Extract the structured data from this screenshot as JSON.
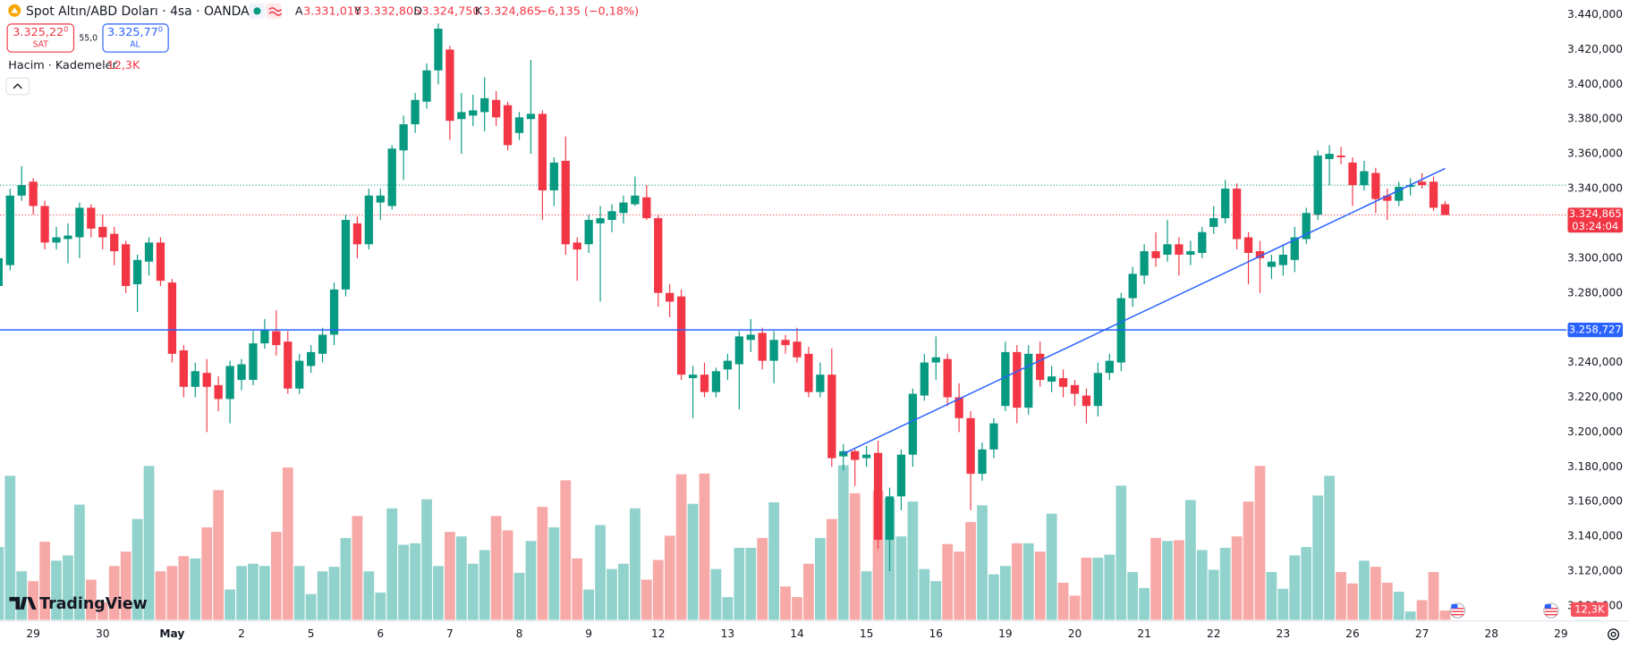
{
  "chart_data": {
    "type": "candlestick",
    "title": "Spot Altın/ABD Doları · 4sa · OANDA",
    "legend": {
      "open_letter": "A",
      "open": "3.331,010",
      "high_letter": "Y",
      "high": "3.332,805",
      "low_letter": "D",
      "low": "3.324,750",
      "close_letter": "K",
      "close": "3.324,865",
      "change": "−6,135 (−0,18%)"
    },
    "sell": {
      "price": "3.325,22",
      "price_small": "0",
      "label": "SAT"
    },
    "spread": "55,0",
    "buy": {
      "price": "3.325,77",
      "price_small": "0",
      "label": "AL"
    },
    "volume_title": "Hacim · Kademeler",
    "volume_last_label": "12,3K",
    "brand": "TradingView",
    "up_color": "#089981",
    "down_color": "#f23645",
    "volume_up_color": "#92d2cc",
    "volume_down_color": "#f7a9a7",
    "ylim": [
      3092,
      3448.4
    ],
    "yticks": [
      {
        "value": 3440,
        "label": "3.440,000"
      },
      {
        "value": 3420,
        "label": "3.420,000"
      },
      {
        "value": 3400,
        "label": "3.400,000"
      },
      {
        "value": 3380,
        "label": "3.380,000"
      },
      {
        "value": 3360,
        "label": "3.360,000"
      },
      {
        "value": 3340,
        "label": "3.340,000"
      },
      {
        "value": 3320,
        "label": "3.320,000"
      },
      {
        "value": 3300,
        "label": "3.300,000"
      },
      {
        "value": 3280,
        "label": "3.280,000"
      },
      {
        "value": 3260,
        "label": "3.260,000"
      },
      {
        "value": 3240,
        "label": "3.240,000"
      },
      {
        "value": 3220,
        "label": "3.220,000"
      },
      {
        "value": 3200,
        "label": "3.200,000"
      },
      {
        "value": 3180,
        "label": "3.180,000"
      },
      {
        "value": 3160,
        "label": "3.160,000"
      },
      {
        "value": 3140,
        "label": "3.140,000"
      },
      {
        "value": 3120,
        "label": "3.120,000"
      },
      {
        "value": 3100,
        "label": "3.100,000"
      }
    ],
    "grid": false,
    "categories": [
      null,
      null,
      null,
      "29",
      null,
      null,
      null,
      null,
      null,
      "30",
      null,
      null,
      null,
      null,
      null,
      "May",
      null,
      null,
      null,
      null,
      null,
      "2",
      null,
      null,
      null,
      null,
      null,
      "5",
      null,
      null,
      null,
      null,
      null,
      "6",
      null,
      null,
      null,
      null,
      null,
      "7",
      null,
      null,
      null,
      null,
      null,
      "8",
      null,
      null,
      null,
      null,
      null,
      "9",
      null,
      null,
      null,
      null,
      null,
      "12",
      null,
      null,
      null,
      null,
      null,
      "13",
      null,
      null,
      null,
      null,
      null,
      "14",
      null,
      null,
      null,
      null,
      null,
      "15",
      null,
      null,
      null,
      null,
      null,
      "16",
      null,
      null,
      null,
      null,
      null,
      "19",
      null,
      null,
      null,
      null,
      null,
      "20",
      null,
      null,
      null,
      null,
      null,
      "21",
      null,
      null,
      null,
      null,
      null,
      "22",
      null,
      null,
      null,
      null,
      null,
      "23",
      null,
      null,
      null,
      null,
      null,
      "26",
      null,
      null,
      null,
      null,
      null,
      "27",
      null,
      null,
      null,
      null,
      null,
      "28",
      null,
      null,
      null,
      null,
      null,
      "29"
    ],
    "ohlc": [
      [
        3284,
        3305,
        3280,
        3300
      ],
      [
        3296,
        3340,
        3293,
        3336
      ],
      [
        3336,
        3353,
        3333,
        3342
      ],
      [
        3344,
        3346,
        3325,
        3330
      ],
      [
        3330,
        3333,
        3305,
        3309
      ],
      [
        3309,
        3318,
        3305,
        3312
      ],
      [
        3311,
        3320,
        3297,
        3313
      ],
      [
        3312,
        3332,
        3300,
        3329
      ],
      [
        3329,
        3331,
        3312,
        3317
      ],
      [
        3318,
        3325,
        3305,
        3312
      ],
      [
        3314,
        3318,
        3296,
        3304
      ],
      [
        3308,
        3310,
        3280,
        3284
      ],
      [
        3285,
        3302,
        3269,
        3299
      ],
      [
        3298,
        3312,
        3290,
        3309
      ],
      [
        3309,
        3312,
        3284,
        3287
      ],
      [
        3286,
        3288,
        3240,
        3245
      ],
      [
        3247,
        3250,
        3220,
        3226
      ],
      [
        3226,
        3240,
        3220,
        3235
      ],
      [
        3234,
        3242,
        3200,
        3226
      ],
      [
        3227,
        3232,
        3212,
        3219
      ],
      [
        3219,
        3241,
        3205,
        3238
      ],
      [
        3230,
        3242,
        3224,
        3239
      ],
      [
        3230,
        3258,
        3227,
        3251
      ],
      [
        3251,
        3265,
        3248,
        3259
      ],
      [
        3258,
        3270,
        3244,
        3250
      ],
      [
        3252,
        3258,
        3222,
        3225
      ],
      [
        3225,
        3245,
        3222,
        3241
      ],
      [
        3238,
        3250,
        3234,
        3246
      ],
      [
        3245,
        3260,
        3240,
        3256
      ],
      [
        3256,
        3286,
        3250,
        3282
      ],
      [
        3282,
        3325,
        3278,
        3322
      ],
      [
        3320,
        3324,
        3300,
        3308
      ],
      [
        3308,
        3340,
        3305,
        3336
      ],
      [
        3332,
        3340,
        3322,
        3336
      ],
      [
        3330,
        3365,
        3328,
        3363
      ],
      [
        3362,
        3382,
        3345,
        3377
      ],
      [
        3377,
        3395,
        3372,
        3391
      ],
      [
        3390,
        3412,
        3386,
        3408
      ],
      [
        3408,
        3435,
        3400,
        3432
      ],
      [
        3420,
        3422,
        3368,
        3379
      ],
      [
        3380,
        3395,
        3360,
        3384
      ],
      [
        3382,
        3394,
        3376,
        3385
      ],
      [
        3384,
        3404,
        3373,
        3392
      ],
      [
        3391,
        3396,
        3376,
        3381
      ],
      [
        3388,
        3390,
        3362,
        3365
      ],
      [
        3372,
        3384,
        3368,
        3381
      ],
      [
        3380,
        3414,
        3360,
        3383
      ],
      [
        3383,
        3385,
        3322,
        3339
      ],
      [
        3339,
        3358,
        3330,
        3355
      ],
      [
        3356,
        3370,
        3302,
        3308
      ],
      [
        3309,
        3312,
        3287,
        3305
      ],
      [
        3308,
        3325,
        3303,
        3322
      ],
      [
        3320,
        3330,
        3275,
        3323
      ],
      [
        3322,
        3331,
        3315,
        3327
      ],
      [
        3326,
        3336,
        3320,
        3332
      ],
      [
        3331,
        3347,
        3330,
        3336
      ],
      [
        3335,
        3342,
        3322,
        3323
      ],
      [
        3323,
        3325,
        3272,
        3280
      ],
      [
        3280,
        3285,
        3266,
        3275
      ],
      [
        3278,
        3282,
        3230,
        3233
      ],
      [
        3231,
        3238,
        3208,
        3233
      ],
      [
        3233,
        3240,
        3220,
        3223
      ],
      [
        3223,
        3237,
        3220,
        3235
      ],
      [
        3236,
        3245,
        3230,
        3241
      ],
      [
        3239,
        3258,
        3213,
        3255
      ],
      [
        3253,
        3265,
        3246,
        3256
      ],
      [
        3257,
        3260,
        3236,
        3241
      ],
      [
        3241,
        3258,
        3228,
        3253
      ],
      [
        3253,
        3256,
        3245,
        3250
      ],
      [
        3252,
        3260,
        3240,
        3243
      ],
      [
        3245,
        3249,
        3220,
        3223
      ],
      [
        3223,
        3240,
        3220,
        3233
      ],
      [
        3233,
        3248,
        3180,
        3185
      ],
      [
        3186,
        3193,
        3178,
        3189
      ],
      [
        3189,
        3190,
        3169,
        3184
      ],
      [
        3185,
        3192,
        3180,
        3187
      ],
      [
        3188,
        3195,
        3133,
        3138
      ],
      [
        3138,
        3168,
        3120,
        3163
      ],
      [
        3163,
        3190,
        3155,
        3187
      ],
      [
        3187,
        3225,
        3180,
        3222
      ],
      [
        3221,
        3245,
        3218,
        3240
      ],
      [
        3240,
        3255,
        3230,
        3243
      ],
      [
        3242,
        3245,
        3215,
        3220
      ],
      [
        3220,
        3228,
        3200,
        3208
      ],
      [
        3208,
        3212,
        3155,
        3176
      ],
      [
        3176,
        3194,
        3172,
        3190
      ],
      [
        3190,
        3208,
        3185,
        3205
      ],
      [
        3215,
        3252,
        3212,
        3246
      ],
      [
        3246,
        3250,
        3205,
        3214
      ],
      [
        3214,
        3250,
        3210,
        3245
      ],
      [
        3245,
        3252,
        3226,
        3230
      ],
      [
        3229,
        3238,
        3223,
        3232
      ],
      [
        3231,
        3236,
        3220,
        3226
      ],
      [
        3227,
        3230,
        3215,
        3222
      ],
      [
        3221,
        3225,
        3205,
        3215
      ],
      [
        3215,
        3240,
        3209,
        3234
      ],
      [
        3234,
        3245,
        3230,
        3241
      ],
      [
        3240,
        3280,
        3235,
        3277
      ],
      [
        3277,
        3295,
        3272,
        3291
      ],
      [
        3290,
        3308,
        3285,
        3304
      ],
      [
        3304,
        3315,
        3295,
        3300
      ],
      [
        3302,
        3322,
        3298,
        3308
      ],
      [
        3308,
        3312,
        3290,
        3302
      ],
      [
        3302,
        3310,
        3296,
        3304
      ],
      [
        3303,
        3318,
        3300,
        3315
      ],
      [
        3318,
        3330,
        3314,
        3323
      ],
      [
        3323,
        3345,
        3320,
        3340
      ],
      [
        3340,
        3343,
        3305,
        3311
      ],
      [
        3312,
        3315,
        3285,
        3303
      ],
      [
        3304,
        3310,
        3280,
        3300
      ],
      [
        3295,
        3302,
        3288,
        3298
      ],
      [
        3296,
        3308,
        3290,
        3302
      ],
      [
        3299,
        3318,
        3292,
        3312
      ],
      [
        3311,
        3329,
        3308,
        3326
      ],
      [
        3325,
        3362,
        3322,
        3359
      ],
      [
        3357,
        3365,
        3342,
        3360
      ],
      [
        3359,
        3364,
        3354,
        3358
      ],
      [
        3355,
        3358,
        3330,
        3342
      ],
      [
        3342,
        3356,
        3339,
        3350
      ],
      [
        3349,
        3352,
        3326,
        3334
      ],
      [
        3336,
        3340,
        3322,
        3333
      ],
      [
        3333,
        3344,
        3330,
        3341
      ],
      [
        3341,
        3346,
        3336,
        3342
      ],
      [
        3344,
        3349,
        3340,
        3342
      ],
      [
        3344,
        3347,
        3327,
        3329
      ],
      [
        3331.01,
        3332.805,
        3324.75,
        3324.865
      ],
      null,
      null,
      null,
      null,
      null,
      null,
      null,
      null,
      null,
      null
    ],
    "volume": [
      96000,
      190000,
      64000,
      51000,
      103000,
      78000,
      85000,
      152000,
      53000,
      23000,
      71000,
      90000,
      133000,
      203000,
      64000,
      71000,
      84000,
      81000,
      122000,
      171000,
      40000,
      71000,
      74000,
      71000,
      116000,
      201000,
      71000,
      34000,
      64000,
      70000,
      108000,
      137000,
      64000,
      36000,
      147000,
      99000,
      101000,
      159000,
      71000,
      116000,
      110000,
      74000,
      92000,
      137000,
      118000,
      62000,
      104000,
      149000,
      122000,
      184000,
      81000,
      40000,
      125000,
      67000,
      74000,
      147000,
      53000,
      79000,
      111000,
      192000,
      153000,
      193000,
      67000,
      30000,
      95000,
      95000,
      108000,
      155000,
      44000,
      30000,
      74000,
      108000,
      133000,
      204000,
      167000,
      64000,
      170000,
      160000,
      110000,
      156000,
      67000,
      51000,
      100000,
      90000,
      129000,
      151000,
      60000,
      71000,
      101000,
      101000,
      90000,
      140000,
      49000,
      32000,
      82000,
      82000,
      86000,
      177000,
      63000,
      42000,
      108000,
      104000,
      105000,
      158000,
      92000,
      66000,
      95000,
      110000,
      156000,
      203000,
      63000,
      41000,
      85000,
      96000,
      164000,
      190000,
      63000,
      48000,
      78000,
      70000,
      49000,
      37000,
      11000,
      26000,
      63000,
      12300,
      null,
      null,
      null,
      null,
      null,
      null,
      null,
      null,
      null,
      null
    ],
    "horizontal_line": {
      "value": 3258.727,
      "label": "3.258,727",
      "color": "#2962ff"
    },
    "trendline": {
      "x": [
        73,
        125
      ],
      "values": [
        3187.5,
        3351.6
      ],
      "color": "#2962ff"
    },
    "last_price": {
      "value": 3324.865,
      "label": "3.324,865",
      "countdown": "03:24:04"
    },
    "previous_close": 3342
  }
}
